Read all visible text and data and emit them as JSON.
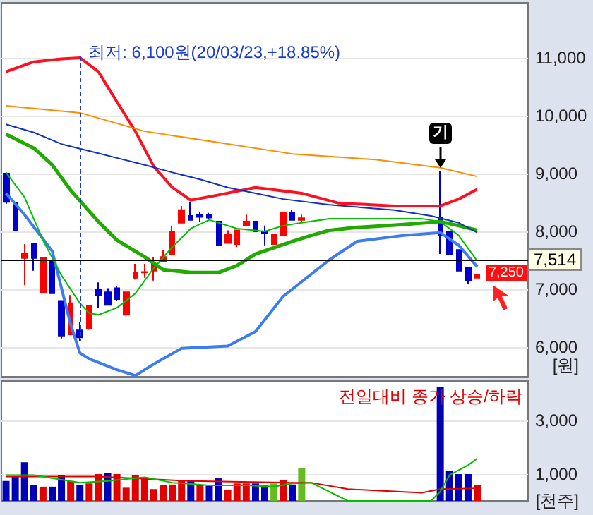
{
  "chart_data": [
    {
      "type": "candlestick",
      "ylabel": "[원]",
      "categories": [
        null,
        null,
        null,
        null,
        null,
        null,
        null,
        null,
        null,
        null,
        null,
        null,
        null,
        null,
        null,
        null,
        null,
        null,
        null,
        null,
        null,
        null,
        null,
        null,
        null,
        null,
        null,
        null,
        null,
        null,
        null,
        null,
        null,
        null,
        null,
        null,
        null,
        null,
        null,
        null,
        null,
        null,
        null,
        null,
        null,
        null,
        null,
        null,
        null,
        null,
        null,
        null,
        null,
        null,
        null,
        null,
        null
      ],
      "ohlc": [
        [
          9000,
          9020,
          8480,
          8510
        ],
        [
          8490,
          8490,
          8000,
          8020
        ],
        [
          7540,
          7780,
          7070,
          7610
        ],
        [
          7780,
          7780,
          7320,
          7540
        ],
        [
          6950,
          7540,
          6950,
          7540
        ],
        [
          7490,
          7490,
          6930,
          6930
        ],
        [
          6800,
          6800,
          6150,
          6200
        ],
        [
          6220,
          6900,
          6220,
          6760
        ],
        [
          6290,
          6440,
          6100,
          6170
        ],
        [
          6320,
          6710,
          6300,
          6710
        ],
        [
          7000,
          7120,
          6680,
          6900
        ],
        [
          6950,
          7020,
          6730,
          6730
        ],
        [
          7020,
          7050,
          6800,
          6830
        ],
        [
          6560,
          6950,
          6560,
          6950
        ],
        [
          7200,
          7440,
          7170,
          7290
        ],
        [
          7290,
          7440,
          7200,
          7300
        ],
        [
          7320,
          7560,
          7150,
          7440
        ],
        [
          7490,
          7680,
          7490,
          7560
        ],
        [
          7610,
          8100,
          7610,
          8000
        ],
        [
          8150,
          8440,
          8150,
          8370
        ],
        [
          8270,
          8510,
          8200,
          8200
        ],
        [
          8290,
          8340,
          8170,
          8250
        ],
        [
          8290,
          8320,
          8200,
          8240
        ],
        [
          8170,
          8170,
          7760,
          7760
        ],
        [
          7800,
          8020,
          7800,
          7950
        ],
        [
          7780,
          8020,
          7730,
          8020
        ],
        [
          8100,
          8290,
          8100,
          8170
        ],
        [
          8170,
          8170,
          8000,
          8000
        ],
        [
          8000,
          8100,
          7760,
          7970
        ],
        [
          7780,
          7950,
          7780,
          7950
        ],
        [
          7930,
          8320,
          7930,
          8320
        ],
        [
          8320,
          8370,
          8200,
          8200
        ],
        [
          8200,
          8290,
          8150,
          8230
        ],
        null,
        null,
        null,
        null,
        null,
        null,
        null,
        null,
        null,
        null,
        null,
        null,
        null,
        null,
        [
          8240,
          9050,
          7610,
          7930
        ],
        [
          8000,
          8000,
          7610,
          7610
        ],
        [
          7680,
          7680,
          7320,
          7320
        ],
        [
          7370,
          7370,
          7100,
          7150
        ],
        [
          7200,
          7260,
          7200,
          7250
        ],
        null,
        null,
        null,
        null,
        null
      ],
      "colors": [
        "#0000cc",
        "#0000cc",
        "#ff0000",
        "#0000cc",
        "#ff0000",
        "#0000cc",
        "#0000cc",
        "#ff0000",
        "#0000cc",
        "#ff0000",
        "#0000cc",
        "#0000cc",
        "#0000cc",
        "#ff0000",
        "#ff0000",
        "#ff0000",
        "#ff0000",
        "#ff0000",
        "#ff0000",
        "#ff0000",
        "#0000cc",
        "#0000cc",
        "#0000cc",
        "#0000cc",
        "#ff0000",
        "#ff0000",
        "#ff0000",
        "#0000cc",
        "#0000cc",
        "#ff0000",
        "#ff0000",
        "#0000cc",
        "#ff0000",
        null,
        null,
        null,
        null,
        null,
        null,
        null,
        null,
        null,
        null,
        null,
        null,
        null,
        null,
        "#0000cc",
        "#0000cc",
        "#0000cc",
        "#0000cc",
        "#ff0000",
        null,
        null,
        null,
        null,
        null
      ],
      "series": [
        {
          "type": "line",
          "color": "#ff1020",
          "values": [
            10760,
            null,
            null,
            10930,
            null,
            null,
            10980,
            null,
            11000,
            null,
            10760,
            null,
            10240,
            null,
            9730,
            null,
            9120,
            null,
            8760,
            null,
            8540,
            null,
            null,
            8630,
            null,
            null,
            null,
            8760,
            null,
            null,
            null,
            null,
            8660,
            null,
            null,
            null,
            8490,
            null,
            null,
            null,
            null,
            null,
            8440,
            null,
            null,
            null,
            null,
            8440,
            null,
            8560,
            null,
            8730,
            null,
            null,
            null,
            null,
            null
          ]
        },
        {
          "type": "line",
          "color": "#3c7cf0",
          "values": [
            8660,
            null,
            8290,
            null,
            null,
            7660,
            null,
            6390,
            5900,
            5800,
            null,
            null,
            5610,
            null,
            5510,
            null,
            5710,
            null,
            null,
            5980,
            null,
            null,
            null,
            null,
            6020,
            null,
            null,
            6270,
            null,
            null,
            6880,
            null,
            null,
            null,
            null,
            7510,
            null,
            null,
            7830,
            null,
            null,
            null,
            null,
            7930,
            null,
            null,
            null,
            7980,
            null,
            7760,
            null,
            7390,
            null,
            null,
            null,
            null,
            null
          ]
        },
        {
          "type": "line",
          "color": "#22aa00",
          "values": [
            9680,
            null,
            null,
            9440,
            null,
            9150,
            null,
            8710,
            null,
            null,
            8170,
            null,
            7850,
            null,
            null,
            7560,
            null,
            7340,
            null,
            null,
            7290,
            null,
            null,
            7290,
            null,
            7410,
            null,
            7610,
            null,
            null,
            null,
            7830,
            null,
            7930,
            null,
            8020,
            null,
            null,
            8070,
            null,
            null,
            null,
            null,
            8120,
            null,
            null,
            null,
            8170,
            null,
            8100,
            null,
            8020,
            null,
            null,
            null,
            null,
            null
          ]
        },
        {
          "type": "line",
          "color": "#00c000",
          "values": [
            9020,
            null,
            8590,
            null,
            7850,
            null,
            7240,
            null,
            6760,
            6590,
            6560,
            null,
            6680,
            null,
            6930,
            null,
            7370,
            null,
            7730,
            null,
            8050,
            null,
            8200,
            null,
            null,
            8050,
            null,
            null,
            8000,
            null,
            8100,
            null,
            8150,
            null,
            null,
            8220,
            null,
            null,
            null,
            null,
            null,
            null,
            null,
            null,
            null,
            8220,
            null,
            8170,
            null,
            7930,
            7710,
            7490,
            null,
            null,
            null,
            null,
            null
          ]
        },
        {
          "type": "line",
          "color": "#1030c0",
          "values": [
            9850,
            null,
            null,
            9710,
            null,
            null,
            9510,
            null,
            null,
            9390,
            null,
            null,
            9270,
            null,
            null,
            9150,
            null,
            null,
            9020,
            null,
            null,
            8900,
            null,
            null,
            8760,
            null,
            null,
            8660,
            null,
            null,
            8560,
            null,
            null,
            null,
            null,
            8460,
            null,
            null,
            null,
            null,
            null,
            null,
            8370,
            null,
            null,
            null,
            8270,
            null,
            null,
            8150,
            null,
            7980,
            null,
            null,
            null,
            null,
            null
          ]
        },
        {
          "type": "line",
          "color": "#ff8c00",
          "values": [
            10170,
            null,
            null,
            null,
            null,
            null,
            null,
            null,
            10050,
            null,
            null,
            null,
            null,
            null,
            null,
            9730,
            null,
            null,
            null,
            null,
            null,
            null,
            9560,
            null,
            null,
            null,
            null,
            null,
            null,
            null,
            null,
            9340,
            null,
            null,
            null,
            null,
            null,
            null,
            null,
            null,
            9240,
            null,
            null,
            null,
            null,
            null,
            null,
            9100,
            null,
            null,
            null,
            8950,
            null,
            null,
            null,
            null,
            null
          ]
        }
      ],
      "ylim": [
        5490,
        11950
      ],
      "yticks": [
        {
          "value": 6000,
          "label": "6,000"
        },
        {
          "value": 7000,
          "label": "7,000"
        },
        {
          "value": 8000,
          "label": "8,000"
        },
        {
          "value": 9000,
          "label": "9,000"
        },
        {
          "value": 10000,
          "label": "10,000"
        },
        {
          "value": 11000,
          "label": "11,000"
        }
      ],
      "grid": "y",
      "ref_lines": [
        {
          "axis": "y",
          "value": 7514,
          "label": "7,514",
          "color": "#000000"
        }
      ],
      "annotations": [
        "최저: 6,100원(20/03/23,+18.85%)",
        {
          "text": "기",
          "y": 9050
        },
        {
          "text": "7,250",
          "y": 7250
        }
      ]
    },
    {
      "type": "bar",
      "ylabel": "[천주]",
      "categories": [
        null,
        null,
        null,
        null,
        null,
        null,
        null,
        null,
        null,
        null,
        null,
        null,
        null,
        null,
        null,
        null,
        null,
        null,
        null,
        null,
        null,
        null,
        null,
        null,
        null,
        null,
        null,
        null,
        null,
        null,
        null,
        null,
        null,
        null,
        null,
        null,
        null,
        null,
        null,
        null,
        null,
        null,
        null,
        null,
        null,
        null,
        null,
        null,
        null,
        null,
        null,
        null,
        null,
        null,
        null,
        null,
        null
      ],
      "series": [
        {
          "values": [
            740,
            910,
            1440,
            580,
            530,
            530,
            960,
            740,
            580,
            650,
            1000,
            1050,
            1000,
            490,
            960,
            840,
            440,
            580,
            610,
            770,
            750,
            580,
            560,
            840,
            420,
            650,
            650,
            650,
            580,
            650,
            790,
            610,
            1230,
            null,
            null,
            null,
            null,
            null,
            null,
            null,
            null,
            null,
            null,
            null,
            null,
            null,
            null,
            4250,
            1110,
            1000,
            1000,
            580,
            null,
            null,
            null,
            null,
            null
          ],
          "colors": [
            "#0000b4",
            "#0000b4",
            "#0000b4",
            "#0000b4",
            "#e00000",
            "#0000b4",
            "#0000b4",
            "#e00000",
            "#0000b4",
            "#e00000",
            "#e00000",
            "#0000b4",
            "#e00000",
            "#e00000",
            "#e00000",
            "#e00000",
            "#e00000",
            "#e00000",
            "#e00000",
            "#e00000",
            "#0000b4",
            "#e00000",
            "#0000b4",
            "#0000b4",
            "#e00000",
            "#e00000",
            "#e00000",
            "#0000b4",
            "#0000b4",
            "#66bb22",
            "#e00000",
            "#0000b4",
            "#66bb22",
            null,
            null,
            null,
            null,
            null,
            null,
            null,
            null,
            null,
            null,
            null,
            null,
            null,
            null,
            "#0000b4",
            "#0000b4",
            "#0000b4",
            "#0000b4",
            "#e00000",
            null,
            null,
            null,
            null,
            null
          ]
        },
        {
          "type": "line",
          "color": "#e00000",
          "values": [
            910,
            null,
            null,
            null,
            null,
            null,
            null,
            null,
            null,
            null,
            910,
            null,
            null,
            null,
            null,
            null,
            null,
            null,
            null,
            null,
            740,
            null,
            null,
            null,
            null,
            null,
            null,
            null,
            null,
            null,
            null,
            680,
            null,
            680,
            null,
            null,
            null,
            440,
            null,
            null,
            null,
            null,
            null,
            null,
            null,
            300,
            null,
            440,
            null,
            null,
            null,
            470,
            null,
            null,
            null,
            null,
            null
          ]
        },
        {
          "type": "line",
          "color": "#00c000",
          "values": [
            960,
            null,
            null,
            960,
            null,
            null,
            null,
            null,
            680,
            null,
            null,
            740,
            null,
            null,
            null,
            880,
            null,
            null,
            680,
            null,
            null,
            null,
            580,
            null,
            null,
            null,
            580,
            null,
            null,
            530,
            null,
            650,
            null,
            680,
            null,
            null,
            null,
            0,
            null,
            null,
            null,
            null,
            null,
            null,
            null,
            null,
            0,
            350,
            960,
            null,
            1330,
            1580,
            null,
            null,
            null,
            null,
            null
          ]
        }
      ],
      "ylim": [
        0,
        4470
      ],
      "yticks": [
        {
          "value": 1000,
          "label": "1,000"
        },
        {
          "value": 3000,
          "label": "3,000"
        }
      ],
      "grid": "y",
      "annotations": [
        "전일대비 종가 상승/하락"
      ]
    }
  ]
}
